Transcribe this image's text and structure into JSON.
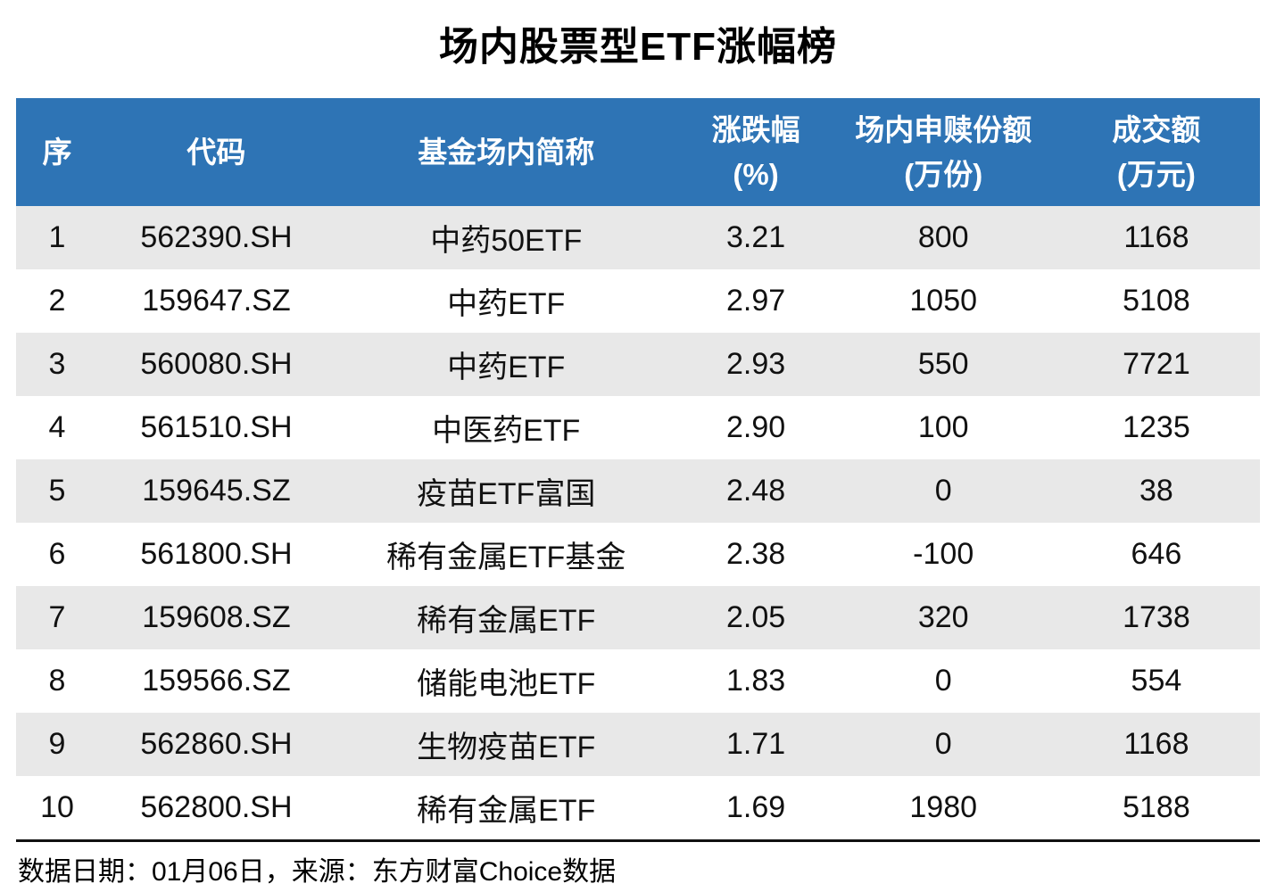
{
  "title": "场内股票型ETF涨幅榜",
  "colors": {
    "header_bg": "#2E74B5",
    "header_text": "#FFFFFF",
    "row_alt_bg": "#E8E8E8",
    "text": "#111111",
    "rule": "#111111"
  },
  "table": {
    "columns": [
      {
        "label": "序",
        "sub": ""
      },
      {
        "label": "代码",
        "sub": ""
      },
      {
        "label": "基金场内简称",
        "sub": ""
      },
      {
        "label": "涨跌幅",
        "sub": "(%)"
      },
      {
        "label": "场内申赎份额",
        "sub": "(万份)"
      },
      {
        "label": "成交额",
        "sub": "(万元)"
      }
    ],
    "rows": [
      {
        "idx": "1",
        "code": "562390.SH",
        "name": "中药50ETF",
        "chg": "3.21",
        "shares": "800",
        "turnover": "1168"
      },
      {
        "idx": "2",
        "code": "159647.SZ",
        "name": "中药ETF",
        "chg": "2.97",
        "shares": "1050",
        "turnover": "5108"
      },
      {
        "idx": "3",
        "code": "560080.SH",
        "name": "中药ETF",
        "chg": "2.93",
        "shares": "550",
        "turnover": "7721"
      },
      {
        "idx": "4",
        "code": "561510.SH",
        "name": "中医药ETF",
        "chg": "2.90",
        "shares": "100",
        "turnover": "1235"
      },
      {
        "idx": "5",
        "code": "159645.SZ",
        "name": "疫苗ETF富国",
        "chg": "2.48",
        "shares": "0",
        "turnover": "38"
      },
      {
        "idx": "6",
        "code": "561800.SH",
        "name": "稀有金属ETF基金",
        "chg": "2.38",
        "shares": "-100",
        "turnover": "646"
      },
      {
        "idx": "7",
        "code": "159608.SZ",
        "name": "稀有金属ETF",
        "chg": "2.05",
        "shares": "320",
        "turnover": "1738"
      },
      {
        "idx": "8",
        "code": "159566.SZ",
        "name": "储能电池ETF",
        "chg": "1.83",
        "shares": "0",
        "turnover": "554"
      },
      {
        "idx": "9",
        "code": "562860.SH",
        "name": "生物疫苗ETF",
        "chg": "1.71",
        "shares": "0",
        "turnover": "1168"
      },
      {
        "idx": "10",
        "code": "562800.SH",
        "name": "稀有金属ETF",
        "chg": "1.69",
        "shares": "1980",
        "turnover": "5188"
      }
    ]
  },
  "footer": {
    "text": "数据日期：01月06日，来源：东方财富Choice数据"
  },
  "chart_data": {
    "type": "table",
    "title": "场内股票型ETF涨幅榜",
    "columns": [
      "序",
      "代码",
      "基金场内简称",
      "涨跌幅(%)",
      "场内申赎份额(万份)",
      "成交额(万元)"
    ],
    "rows": [
      [
        1,
        "562390.SH",
        "中药50ETF",
        3.21,
        800,
        1168
      ],
      [
        2,
        "159647.SZ",
        "中药ETF",
        2.97,
        1050,
        5108
      ],
      [
        3,
        "560080.SH",
        "中药ETF",
        2.93,
        550,
        7721
      ],
      [
        4,
        "561510.SH",
        "中医药ETF",
        2.9,
        100,
        1235
      ],
      [
        5,
        "159645.SZ",
        "疫苗ETF富国",
        2.48,
        0,
        38
      ],
      [
        6,
        "561800.SH",
        "稀有金属ETF基金",
        2.38,
        -100,
        646
      ],
      [
        7,
        "159608.SZ",
        "稀有金属ETF",
        2.05,
        320,
        1738
      ],
      [
        8,
        "159566.SZ",
        "储能电池ETF",
        1.83,
        0,
        554
      ],
      [
        9,
        "562860.SH",
        "生物疫苗ETF",
        1.71,
        0,
        1168
      ],
      [
        10,
        "562800.SH",
        "稀有金属ETF",
        1.69,
        1980,
        5188
      ]
    ],
    "footer": "数据日期：01月06日，来源：东方财富Choice数据"
  }
}
